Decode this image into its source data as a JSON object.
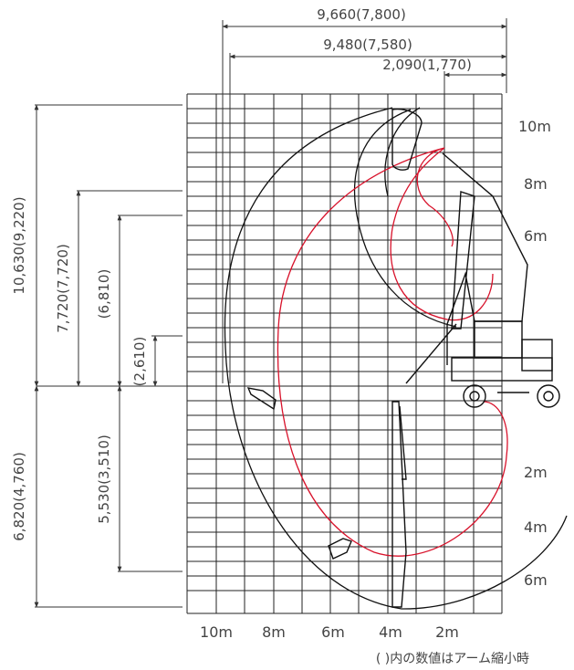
{
  "dims_top": {
    "d1": "9,660(7,800)",
    "d2": "9,480(7,580)",
    "d3": "2,090(1,770)"
  },
  "dims_left": {
    "d1": "10,630(9,220)",
    "d2": "7,720(7,720)",
    "d3": "(6,810)",
    "d4": "(2,610)",
    "d5": "6,820(4,760)",
    "d6": "5,530(3,510)"
  },
  "right_labels": [
    "10m",
    "8m",
    "6m",
    "2m",
    "4m",
    "6m"
  ],
  "bottom_labels": [
    "10m",
    "8m",
    "6m",
    "4m",
    "2m"
  ],
  "note": "( )内の数値はアーム縮小時",
  "colors": {
    "line": "#111111",
    "accent_red": "#d8122b"
  }
}
